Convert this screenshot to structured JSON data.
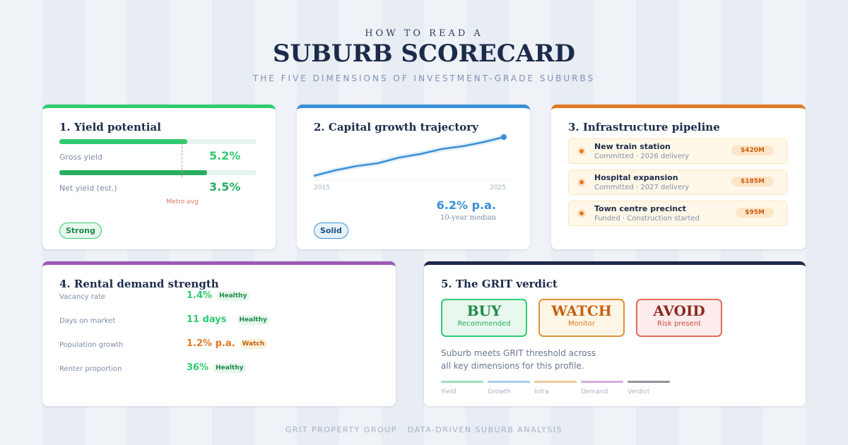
{
  "header": {
    "kicker": "HOW TO READ A",
    "title": "SUBURB SCORECARD",
    "subtitle": "THE FIVE DIMENSIONS OF INVESTMENT-GRADE SUBURBS"
  },
  "cards": {
    "yield": {
      "title": "1. Yield potential",
      "rows": [
        {
          "label": "Gross yield",
          "value": "5.2%"
        },
        {
          "label": "Net yield (est.)",
          "value": "3.5%"
        }
      ],
      "marker": "Metro avg",
      "badge": "Strong"
    },
    "growth": {
      "title": "2. Capital growth trajectory",
      "start": "2015",
      "end": "2025",
      "rate": "6.2% p.a.",
      "note": "10-year median",
      "badge": "Solid"
    },
    "infra": {
      "title": "3. Infrastructure pipeline",
      "items": [
        {
          "name": "New train station",
          "status": "Committed · 2026 delivery",
          "value": "$420M"
        },
        {
          "name": "Hospital expansion",
          "status": "Committed · 2027 delivery",
          "value": "$185M"
        },
        {
          "name": "Town centre precinct",
          "status": "Funded · Construction started",
          "value": "$95M"
        }
      ]
    },
    "rental": {
      "title": "4. Rental demand strength",
      "rows": [
        {
          "label": "Vacancy rate",
          "value": "1.4%",
          "status": "Healthy"
        },
        {
          "label": "Days on market",
          "value": "11 days",
          "status": "Healthy"
        },
        {
          "label": "Population growth",
          "value": "1.2% p.a.",
          "status": "Watch"
        },
        {
          "label": "Renter proportion",
          "value": "36%",
          "status": "Healthy"
        }
      ]
    },
    "verdict": {
      "title": "5. The GRIT verdict",
      "options": [
        {
          "label": "BUY",
          "note": "Recommended"
        },
        {
          "label": "WATCH",
          "note": "Monitor"
        },
        {
          "label": "AVOID",
          "note": "Risk present"
        }
      ],
      "summary": "Suburb meets GRIT threshold across all key dimensions for this profile.",
      "legend": [
        "Yield",
        "Growth",
        "Infra",
        "Demand",
        "Verdict"
      ]
    }
  },
  "footer": "GRIT PROPERTY GROUP · DATA-DRIVEN SUBURB ANALYSIS"
}
